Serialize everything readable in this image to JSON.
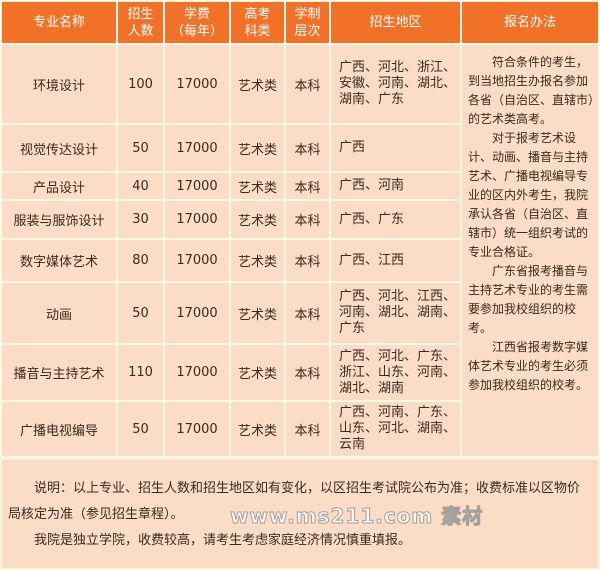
{
  "headers": [
    "专业名称",
    "招生\n人数",
    "学费\n（每年）",
    "高考\n科类",
    "学制\n层次",
    "招生地区",
    "报名办法"
  ],
  "rows": [
    {
      "name": "环境设计",
      "count": "100",
      "fee": "17000",
      "category": "艺术类",
      "level": "本科",
      "regions": "广西、河北、浙江、安徽、河南、湖北、湖南、广东"
    },
    {
      "name": "视觉传达设计",
      "count": "50",
      "fee": "17000",
      "category": "艺术类",
      "level": "本科",
      "regions": "广西"
    },
    {
      "name": "产品设计",
      "count": "40",
      "fee": "17000",
      "category": "艺术类",
      "level": "本科",
      "regions": "广西、河南"
    },
    {
      "name": "服装与服饰设计",
      "count": "30",
      "fee": "17000",
      "category": "艺术类",
      "level": "本科",
      "regions": "广西、广东"
    },
    {
      "name": "数字媒体艺术",
      "count": "80",
      "fee": "17000",
      "category": "艺术类",
      "level": "本科",
      "regions": "广西、江西"
    },
    {
      "name": "动画",
      "count": "50",
      "fee": "17000",
      "category": "艺术类",
      "level": "本科",
      "regions": "广西、河北、江西、河南、湖北、湖南、广东"
    },
    {
      "name": "播音与主持艺术",
      "count": "110",
      "fee": "17000",
      "category": "艺术类",
      "level": "本科",
      "regions": "广西、河北、广东、浙江、山东、河南、湖北、湖南"
    },
    {
      "name": "广播电视编导",
      "count": "50",
      "fee": "17000",
      "category": "艺术类",
      "level": "本科",
      "regions": "广西、河南、广东、山东、河北、湖南、云南"
    }
  ],
  "method_paragraphs": [
    "符合条件的考生，到当地招生办报名参加各省（自治区、直辖市）的艺术类高考。",
    "对于报考艺术设计、动画、播音与主持艺术、广播电视编导专业的区内外考生，我院承认各省（自治区、直辖市）统一组织考试的专业合格证。",
    "广东省报考播音与主持艺术专业的考生需要参加我校组织的校考。",
    "江西省报考数字媒体艺术专业的考生必须参加我校组织的校考。"
  ],
  "footer": {
    "note": "说明：以上专业、招生人数和招生地区如有变化，以区招生考试院公布为准；收费标准以区物价局核定为准（参见招生章程）。",
    "warning": "我院是独立学院，收费较高，请考生考虑家庭经济情况慎重填报。"
  },
  "watermark": "www.ms211.com 素材",
  "colors": {
    "header": "#f07127",
    "cell": "#fbdcc6",
    "background": "#fdf7e3"
  }
}
